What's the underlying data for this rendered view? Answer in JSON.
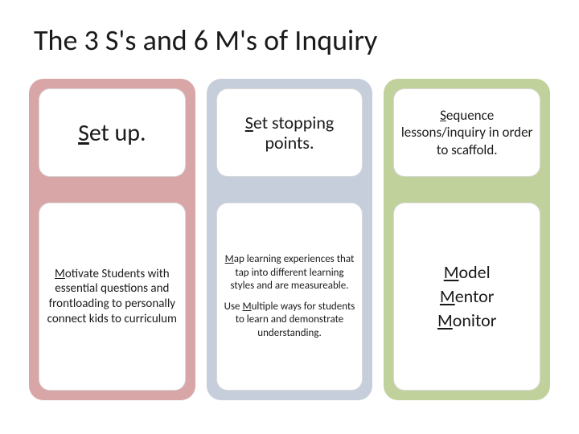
{
  "title": "The 3 S's and 6 M's of Inquiry",
  "columns": [
    {
      "bg": "#d9a6a8",
      "top": {
        "text_u": "S",
        "text_rest": "et up.",
        "size": "big"
      },
      "bottom": {
        "type": "single",
        "text_u": "M",
        "text_rest": "otivate Students with essential questions and frontloading to personally connect kids to curriculum",
        "size": "small"
      }
    },
    {
      "bg": "#c6cedb",
      "top": {
        "text_u": "S",
        "text_rest": "et stopping points.",
        "size": "med"
      },
      "bottom": {
        "type": "two_para",
        "p1_u": "M",
        "p1_rest": "ap learning experiences that  tap into different learning styles and are measureable.",
        "p2_pre": "Use ",
        "p2_u": "M",
        "p2_rest": "ultiple ways for students to learn and demonstrate understanding.",
        "size": "tiny"
      }
    },
    {
      "bg": "#c1d19b",
      "top": {
        "text_u": "S",
        "text_rest": "equence lessons/inquiry in order to scaffold.",
        "size": "small"
      },
      "bottom": {
        "type": "mmm",
        "lines": [
          {
            "u": "M",
            "rest": "odel"
          },
          {
            "u": "M",
            "rest": "entor"
          },
          {
            "u": "M",
            "rest": "onitor"
          }
        ]
      }
    }
  ]
}
